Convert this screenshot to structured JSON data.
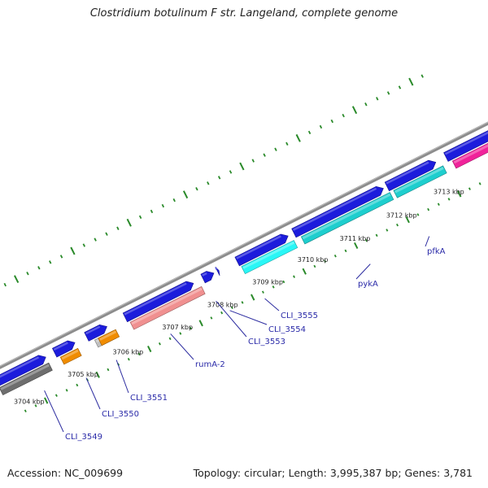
{
  "title": "Clostridium botulinum F str. Langeland, complete genome",
  "footer": {
    "accession": "Accession: NC_009699",
    "topology": "Topology: circular; Length: 3,995,387 bp; Genes: 3,781"
  },
  "colors": {
    "backbone": "#8c8c8c",
    "ticks": "#2a8a2a",
    "forward_genes": "#1c1cdc",
    "label_text": "#2a2aa8",
    "leader_lines": "#2c2ca0",
    "gene_grey": "#6e6e6e",
    "gene_orange": "#f08c00",
    "gene_silver": "#c0c0c0",
    "gene_pink": "#f09090",
    "gene_cyan": "#1ecece",
    "gene_cyan_light": "#2af6f6",
    "gene_magenta": "#f0229a"
  },
  "kbp_labels": [
    "3704 kbp",
    "3705 kbp",
    "3706 kbp",
    "3707 kbp",
    "3708 kbp",
    "3709 kbp",
    "3710 kbp",
    "3711 kbp",
    "3712 kbp",
    "3713 kbp"
  ],
  "gene_labels": [
    "CLI_3549",
    "CLI_3550",
    "CLI_3551",
    "rumA-2",
    "CLI_3553",
    "CLI_3554",
    "CLI_3555",
    "pykA",
    "pfkA"
  ]
}
